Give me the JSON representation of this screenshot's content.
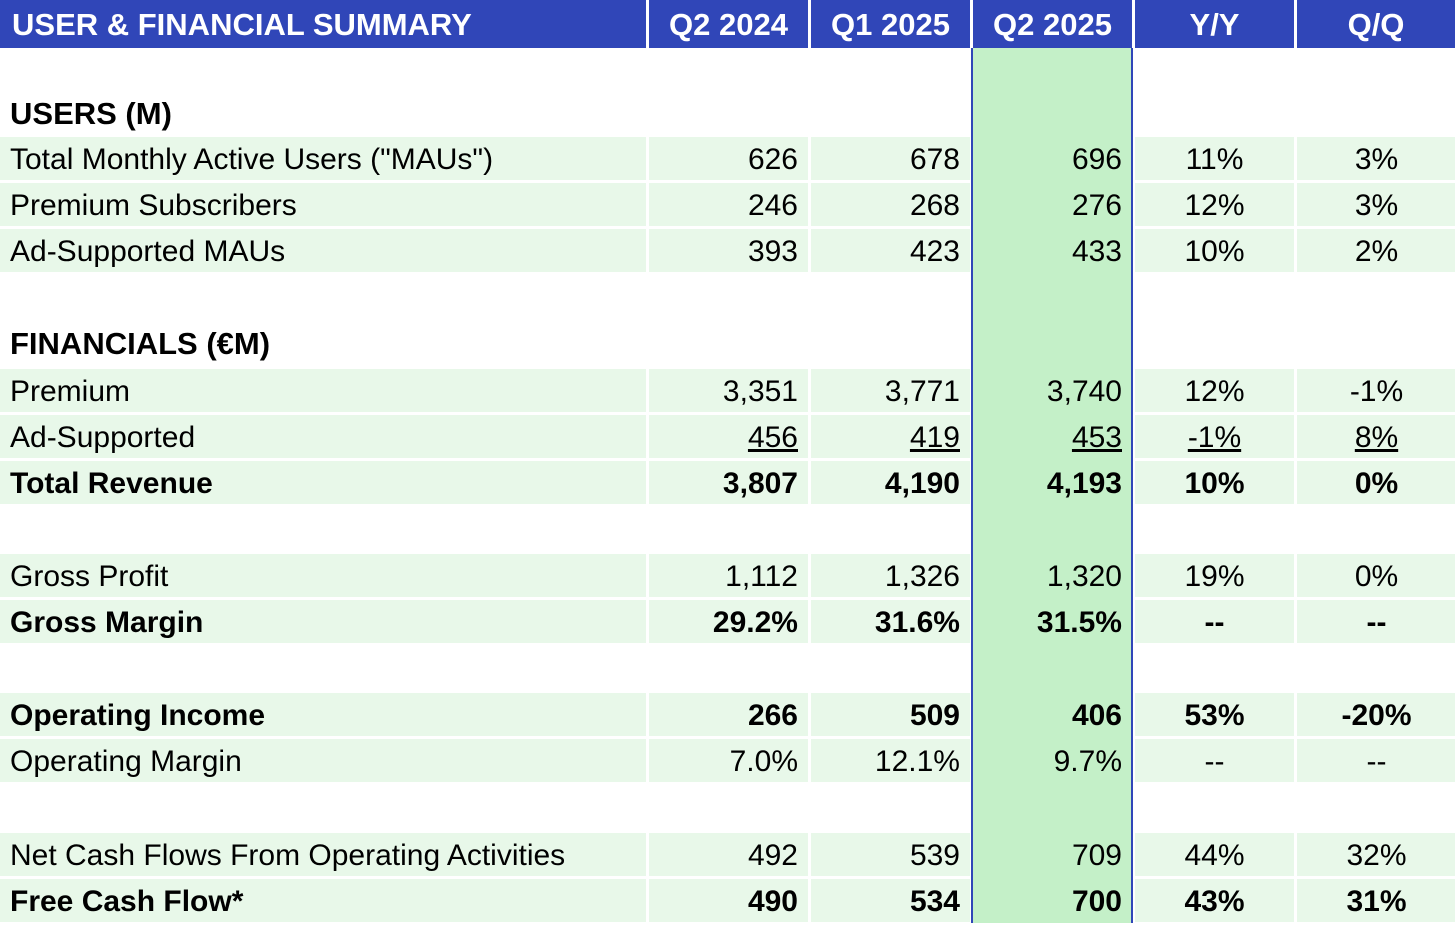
{
  "header": {
    "title": "USER & FINANCIAL SUMMARY",
    "columns": [
      "Q2 2024",
      "Q1 2025",
      "Q2 2025",
      "Y/Y",
      "Q/Q"
    ]
  },
  "sections": {
    "users": "USERS (M)",
    "financials": "FINANCIALS (€M)"
  },
  "rows": [
    {
      "label": "Total Monthly Active Users (\"MAUs\")",
      "values": [
        "626",
        "678",
        "696",
        "11%",
        "3%"
      ]
    },
    {
      "label": "Premium Subscribers",
      "values": [
        "246",
        "268",
        "276",
        "12%",
        "3%"
      ]
    },
    {
      "label": "Ad-Supported MAUs",
      "values": [
        "393",
        "423",
        "433",
        "10%",
        "2%"
      ]
    },
    {
      "label": "Premium",
      "values": [
        "3,351",
        "3,771",
        "3,740",
        "12%",
        "-1%"
      ]
    },
    {
      "label": "Ad-Supported",
      "values": [
        "456",
        "419",
        "453",
        "-1%",
        "8%"
      ]
    },
    {
      "label": "Total Revenue",
      "values": [
        "3,807",
        "4,190",
        "4,193",
        "10%",
        "0%"
      ]
    },
    {
      "label": "Gross Profit",
      "values": [
        "1,112",
        "1,326",
        "1,320",
        "19%",
        "0%"
      ]
    },
    {
      "label": "Gross Margin",
      "values": [
        "29.2%",
        "31.6%",
        "31.5%",
        "--",
        "--"
      ]
    },
    {
      "label": "Operating Income",
      "values": [
        "266",
        "509",
        "406",
        "53%",
        "-20%"
      ]
    },
    {
      "label": "Operating Margin",
      "values": [
        "7.0%",
        "12.1%",
        "9.7%",
        "--",
        "--"
      ]
    },
    {
      "label": "Net Cash Flows From Operating Activities",
      "values": [
        "492",
        "539",
        "709",
        "44%",
        "32%"
      ]
    },
    {
      "label": "Free Cash Flow*",
      "values": [
        "490",
        "534",
        "700",
        "43%",
        "31%"
      ]
    }
  ]
}
